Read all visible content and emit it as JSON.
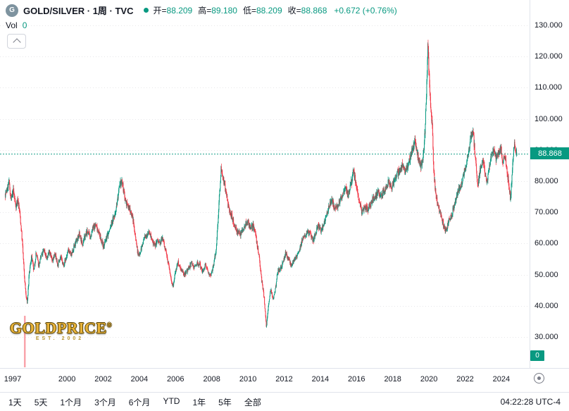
{
  "header": {
    "symbol_initial": "G",
    "title": "GOLD/SILVER · 1周 · TVC",
    "ohlc": {
      "open_label": "开=",
      "open": "88.209",
      "high_label": "高=",
      "high": "89.180",
      "low_label": "低=",
      "low": "88.209",
      "close_label": "收=",
      "close": "88.868",
      "change": "+0.672 (+0.76%)"
    }
  },
  "volume_indicator": {
    "label": "Vol",
    "value": "0"
  },
  "price_scale": {
    "ticks": [
      "130.000",
      "120.000",
      "110.000",
      "100.000",
      "90.000",
      "80.000",
      "70.000",
      "60.000",
      "50.000",
      "40.000",
      "30.000"
    ],
    "current_price_label": "88.868",
    "volume_axis_label": "0"
  },
  "time_scale": {
    "tick_labels": [
      "1997",
      "2000",
      "2002",
      "2004",
      "2006",
      "2008",
      "2010",
      "2012",
      "2014",
      "2016",
      "2018",
      "2020",
      "2022",
      "2024"
    ]
  },
  "toolbar": {
    "ranges": [
      "1天",
      "5天",
      "1个月",
      "3个月",
      "6个月",
      "YTD",
      "1年",
      "5年",
      "全部"
    ],
    "clock": "04:22:28 UTC-4"
  },
  "watermark": {
    "brand": "GOLDPRICE",
    "registered": "®",
    "established": "EST. 2002"
  },
  "colors": {
    "up": "#089981",
    "down": "#F23645",
    "accent": "#089981",
    "axis_text": "#131722",
    "grid": "#e0e3eb"
  },
  "chart_data": {
    "type": "candlestick",
    "title": "GOLD/SILVER 1周 TVC",
    "interval": "1W",
    "ylim": [
      30,
      130
    ],
    "y_ticks": [
      130,
      120,
      110,
      100,
      90,
      80,
      70,
      60,
      50,
      40,
      30
    ],
    "x_ticks": [
      1997,
      2000,
      2002,
      2004,
      2006,
      2008,
      2010,
      2012,
      2014,
      2016,
      2018,
      2020,
      2022,
      2024
    ],
    "x_range": [
      1996.9,
      2025.5
    ],
    "current_price": 88.868,
    "last_bar": {
      "open": 88.209,
      "high": 89.18,
      "low": 88.209,
      "close": 88.868,
      "change": 0.672,
      "change_pct": 0.76
    },
    "up_color": "#089981",
    "down_color": "#F23645",
    "volume_spike": {
      "time": 1997.98,
      "height_frac": 0.14,
      "color": "rgba(242,54,69,0.45)"
    },
    "anchors": [
      [
        1996.9,
        76
      ],
      [
        1997.0,
        77
      ],
      [
        1997.1,
        80
      ],
      [
        1997.22,
        74
      ],
      [
        1997.35,
        77
      ],
      [
        1997.48,
        72
      ],
      [
        1997.6,
        74
      ],
      [
        1997.72,
        69
      ],
      [
        1997.85,
        60
      ],
      [
        1997.95,
        50
      ],
      [
        1998.05,
        43
      ],
      [
        1998.12,
        41
      ],
      [
        1998.22,
        50
      ],
      [
        1998.35,
        56
      ],
      [
        1998.48,
        51
      ],
      [
        1998.6,
        57
      ],
      [
        1998.75,
        53
      ],
      [
        1998.9,
        56
      ],
      [
        1999.05,
        58
      ],
      [
        1999.2,
        55
      ],
      [
        1999.35,
        58
      ],
      [
        1999.5,
        54
      ],
      [
        1999.65,
        57
      ],
      [
        1999.8,
        53
      ],
      [
        1999.95,
        56
      ],
      [
        2000.1,
        53
      ],
      [
        2000.25,
        55
      ],
      [
        2000.4,
        58
      ],
      [
        2000.55,
        56
      ],
      [
        2000.7,
        59
      ],
      [
        2000.85,
        61
      ],
      [
        2001.0,
        63
      ],
      [
        2001.15,
        60
      ],
      [
        2001.3,
        62
      ],
      [
        2001.45,
        64
      ],
      [
        2001.6,
        62
      ],
      [
        2001.75,
        65
      ],
      [
        2001.9,
        66
      ],
      [
        2002.05,
        64
      ],
      [
        2002.2,
        61
      ],
      [
        2002.35,
        59
      ],
      [
        2002.5,
        62
      ],
      [
        2002.65,
        64
      ],
      [
        2002.8,
        67
      ],
      [
        2002.95,
        69
      ],
      [
        2003.1,
        74
      ],
      [
        2003.25,
        79
      ],
      [
        2003.35,
        80
      ],
      [
        2003.5,
        75
      ],
      [
        2003.65,
        72
      ],
      [
        2003.8,
        71
      ],
      [
        2003.95,
        68
      ],
      [
        2004.1,
        62
      ],
      [
        2004.25,
        56
      ],
      [
        2004.4,
        58
      ],
      [
        2004.55,
        61
      ],
      [
        2004.7,
        63
      ],
      [
        2004.85,
        64
      ],
      [
        2005.0,
        61
      ],
      [
        2005.15,
        59
      ],
      [
        2005.3,
        61
      ],
      [
        2005.45,
        60
      ],
      [
        2005.6,
        62
      ],
      [
        2005.75,
        58
      ],
      [
        2005.9,
        54
      ],
      [
        2006.05,
        49
      ],
      [
        2006.18,
        46
      ],
      [
        2006.3,
        51
      ],
      [
        2006.45,
        54
      ],
      [
        2006.6,
        52
      ],
      [
        2006.75,
        50
      ],
      [
        2006.9,
        51
      ],
      [
        2007.05,
        52
      ],
      [
        2007.2,
        54
      ],
      [
        2007.35,
        52
      ],
      [
        2007.5,
        54
      ],
      [
        2007.65,
        53
      ],
      [
        2007.8,
        51
      ],
      [
        2007.95,
        53
      ],
      [
        2008.1,
        51
      ],
      [
        2008.25,
        50
      ],
      [
        2008.4,
        53
      ],
      [
        2008.55,
        58
      ],
      [
        2008.7,
        72
      ],
      [
        2008.82,
        84
      ],
      [
        2008.95,
        81
      ],
      [
        2009.1,
        76
      ],
      [
        2009.25,
        71
      ],
      [
        2009.4,
        69
      ],
      [
        2009.55,
        66
      ],
      [
        2009.7,
        64
      ],
      [
        2009.85,
        63
      ],
      [
        2010.0,
        64
      ],
      [
        2010.15,
        66
      ],
      [
        2010.3,
        67
      ],
      [
        2010.45,
        65
      ],
      [
        2010.6,
        66
      ],
      [
        2010.75,
        62
      ],
      [
        2010.9,
        57
      ],
      [
        2011.05,
        49
      ],
      [
        2011.2,
        43
      ],
      [
        2011.33,
        33
      ],
      [
        2011.45,
        41
      ],
      [
        2011.58,
        45
      ],
      [
        2011.7,
        42
      ],
      [
        2011.82,
        45
      ],
      [
        2011.95,
        51
      ],
      [
        2012.1,
        52
      ],
      [
        2012.25,
        54
      ],
      [
        2012.4,
        57
      ],
      [
        2012.55,
        55
      ],
      [
        2012.7,
        53
      ],
      [
        2012.85,
        55
      ],
      [
        2013.0,
        56
      ],
      [
        2013.15,
        58
      ],
      [
        2013.3,
        61
      ],
      [
        2013.45,
        62
      ],
      [
        2013.6,
        64
      ],
      [
        2013.75,
        63
      ],
      [
        2013.9,
        61
      ],
      [
        2014.05,
        63
      ],
      [
        2014.2,
        66
      ],
      [
        2014.35,
        64
      ],
      [
        2014.5,
        66
      ],
      [
        2014.65,
        69
      ],
      [
        2014.8,
        72
      ],
      [
        2014.95,
        74
      ],
      [
        2015.1,
        71
      ],
      [
        2015.25,
        72
      ],
      [
        2015.4,
        74
      ],
      [
        2015.55,
        76
      ],
      [
        2015.7,
        78
      ],
      [
        2015.85,
        76
      ],
      [
        2016.0,
        79
      ],
      [
        2016.15,
        83
      ],
      [
        2016.3,
        79
      ],
      [
        2016.45,
        74
      ],
      [
        2016.6,
        70
      ],
      [
        2016.75,
        72
      ],
      [
        2016.9,
        71
      ],
      [
        2017.05,
        72
      ],
      [
        2017.2,
        74
      ],
      [
        2017.35,
        75
      ],
      [
        2017.5,
        77
      ],
      [
        2017.65,
        75
      ],
      [
        2017.8,
        77
      ],
      [
        2017.95,
        78
      ],
      [
        2018.1,
        80
      ],
      [
        2018.25,
        78
      ],
      [
        2018.4,
        80
      ],
      [
        2018.55,
        82
      ],
      [
        2018.7,
        84
      ],
      [
        2018.85,
        85
      ],
      [
        2019.0,
        83
      ],
      [
        2019.15,
        85
      ],
      [
        2019.3,
        88
      ],
      [
        2019.45,
        91
      ],
      [
        2019.55,
        93
      ],
      [
        2019.7,
        88
      ],
      [
        2019.85,
        85
      ],
      [
        2020.0,
        88
      ],
      [
        2020.1,
        97
      ],
      [
        2020.18,
        110
      ],
      [
        2020.25,
        124
      ],
      [
        2020.33,
        113
      ],
      [
        2020.42,
        103
      ],
      [
        2020.5,
        97
      ],
      [
        2020.58,
        83
      ],
      [
        2020.68,
        76
      ],
      [
        2020.8,
        72
      ],
      [
        2020.95,
        70
      ],
      [
        2021.1,
        66
      ],
      [
        2021.25,
        64
      ],
      [
        2021.4,
        67
      ],
      [
        2021.55,
        69
      ],
      [
        2021.7,
        72
      ],
      [
        2021.85,
        75
      ],
      [
        2022.0,
        78
      ],
      [
        2022.15,
        80
      ],
      [
        2022.3,
        84
      ],
      [
        2022.45,
        88
      ],
      [
        2022.6,
        93
      ],
      [
        2022.75,
        96
      ],
      [
        2022.88,
        87
      ],
      [
        2023.0,
        78
      ],
      [
        2023.15,
        84
      ],
      [
        2023.28,
        87
      ],
      [
        2023.4,
        83
      ],
      [
        2023.52,
        80
      ],
      [
        2023.65,
        85
      ],
      [
        2023.78,
        88
      ],
      [
        2023.9,
        90
      ],
      [
        2024.02,
        87
      ],
      [
        2024.15,
        89
      ],
      [
        2024.28,
        91
      ],
      [
        2024.4,
        86
      ],
      [
        2024.52,
        88
      ],
      [
        2024.62,
        84
      ],
      [
        2024.72,
        79
      ],
      [
        2024.82,
        74
      ],
      [
        2024.92,
        84
      ],
      [
        2025.02,
        92
      ],
      [
        2025.1,
        90
      ],
      [
        2025.17,
        88.9
      ]
    ]
  }
}
